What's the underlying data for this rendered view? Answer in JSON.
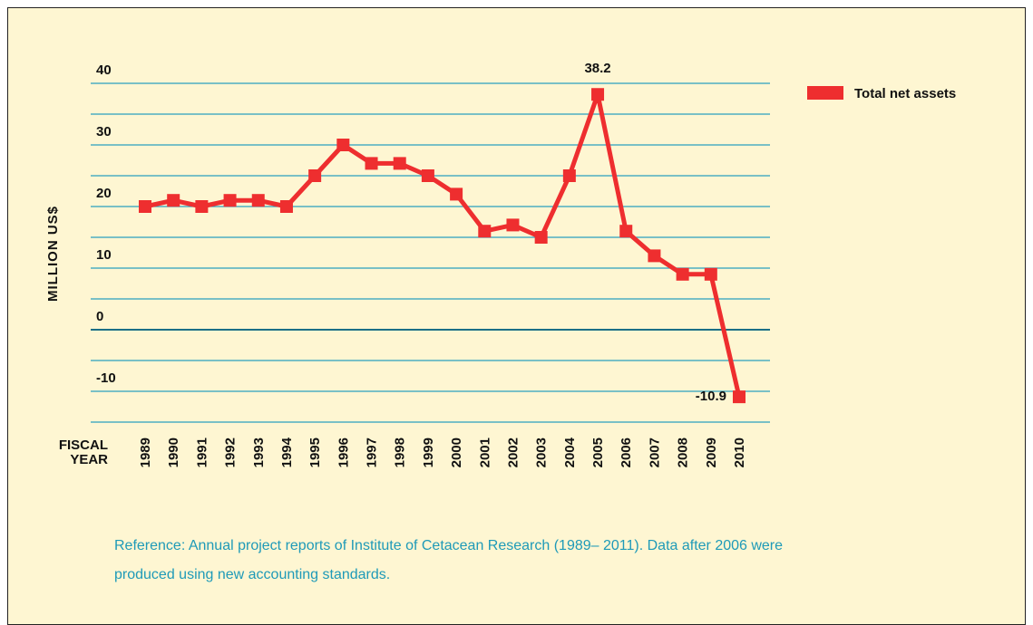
{
  "chart_data": {
    "type": "line",
    "y_axis_label": "MILLION US$",
    "x_axis_label": "FISCAL\nYEAR",
    "categories": [
      "1989",
      "1990",
      "1991",
      "1992",
      "1993",
      "1994",
      "1995",
      "1996",
      "1997",
      "1998",
      "1999",
      "2000",
      "2001",
      "2002",
      "2003",
      "2004",
      "2005",
      "2006",
      "2007",
      "2008",
      "2009",
      "2010"
    ],
    "series": [
      {
        "name": "Total net assets",
        "color": "#ee2e2f",
        "values": [
          20,
          21,
          20,
          21,
          21,
          20,
          25,
          30,
          27,
          27,
          25,
          22,
          16,
          17,
          15,
          25,
          38.2,
          16,
          12,
          9,
          9,
          -10.9
        ],
        "value_labels": [
          null,
          null,
          null,
          null,
          null,
          null,
          null,
          null,
          null,
          null,
          null,
          null,
          null,
          null,
          null,
          null,
          "38.2",
          null,
          null,
          null,
          null,
          "-10.9"
        ]
      }
    ],
    "ylim": [
      -15,
      40
    ],
    "yticks": [
      -10,
      0,
      10,
      20,
      30,
      40
    ],
    "ygrid": [
      -15,
      -10,
      -5,
      0,
      5,
      10,
      15,
      20,
      25,
      30,
      35,
      40
    ],
    "grid_color": "#2a9fc0",
    "legend": "top-right",
    "note": "Reference: Annual project reports of Institute of Cetacean Research (1989– 2011). Data after 2006 were produced using new accounting standards."
  }
}
